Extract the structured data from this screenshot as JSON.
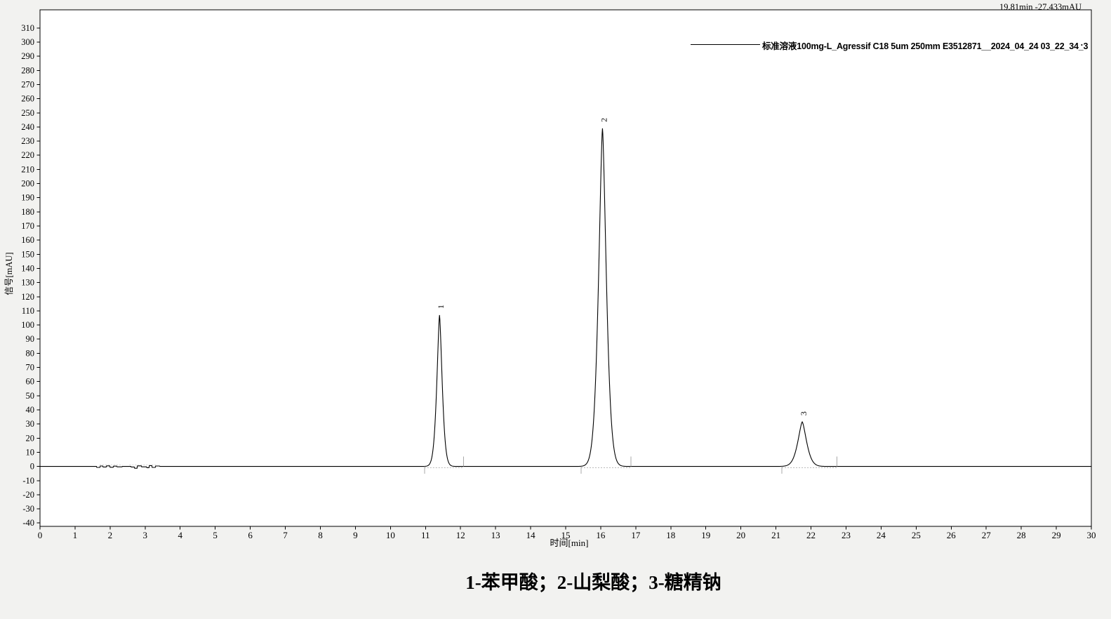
{
  "header": {
    "cursor_readout": "19.81min -27.433mAU"
  },
  "legend": {
    "label": "标准溶液100mg-L_Agressif C18 5um 250mm E3512871__2024_04_24 03_22_34_3",
    "trailing_dot": "."
  },
  "caption": {
    "text": "1-苯甲酸；2-山梨酸；3-糖精钠"
  },
  "colors": {
    "background": "#f2f2f0",
    "plot_background": "#ffffff",
    "trace": "#000000",
    "integration_marks": "#a8a8a8",
    "integration_baseline": "#b6b6b6",
    "noise_integration": "#d2d2d2"
  },
  "chart_data": {
    "type": "line",
    "title": "",
    "xlabel": "时间[min]",
    "ylabel": "信号[mAU]",
    "xlim": [
      0,
      30
    ],
    "ylim": [
      -40,
      310
    ],
    "grid": false,
    "legend_position": "top-right",
    "cursor_readout": "19.81min -27.433mAU",
    "xticks": [
      0,
      1,
      2,
      3,
      4,
      5,
      6,
      7,
      8,
      9,
      10,
      11,
      12,
      13,
      14,
      15,
      16,
      17,
      18,
      19,
      20,
      21,
      22,
      23,
      24,
      25,
      26,
      27,
      28,
      29,
      30
    ],
    "yticks": [
      -40,
      -30,
      -20,
      -10,
      0,
      10,
      20,
      30,
      40,
      50,
      60,
      70,
      80,
      90,
      100,
      110,
      120,
      130,
      140,
      150,
      160,
      170,
      180,
      190,
      200,
      210,
      220,
      230,
      240,
      250,
      260,
      270,
      280,
      290,
      300,
      310
    ],
    "series": [
      {
        "name": "标准溶液100mg-L_Agressif C18 5um 250mm E3512871__2024_04_24 03_22_34_3",
        "color": "#000000"
      }
    ],
    "peaks": [
      {
        "label": "1",
        "compound": "苯甲酸",
        "rt_min": 11.4,
        "height_mAU": 107,
        "width_factor": 0.11,
        "integration_window_min": [
          10.97,
          12.09
        ]
      },
      {
        "label": "2",
        "compound": "山梨酸",
        "rt_min": 16.05,
        "height_mAU": 239,
        "width_factor": 0.16,
        "integration_window_min": [
          15.44,
          16.86
        ]
      },
      {
        "label": "3",
        "compound": "糖精钠",
        "rt_min": 21.75,
        "height_mAU": 31.5,
        "width_factor": 0.18,
        "integration_window_min": [
          21.17,
          22.74
        ]
      }
    ],
    "baseline_noise_points": [
      [
        1.5,
        0
      ],
      [
        1.62,
        -0.7
      ],
      [
        1.72,
        0.3
      ],
      [
        1.8,
        -0.4
      ],
      [
        1.9,
        0.4
      ],
      [
        2.0,
        -0.6
      ],
      [
        2.1,
        0.2
      ],
      [
        2.2,
        -0.3
      ],
      [
        2.35,
        0.0
      ],
      [
        2.6,
        -0.4
      ],
      [
        2.7,
        -1.3
      ],
      [
        2.78,
        0.4
      ],
      [
        2.9,
        -0.3
      ],
      [
        3.05,
        -0.9
      ],
      [
        3.12,
        0.6
      ],
      [
        3.2,
        -0.7
      ],
      [
        3.3,
        0.3
      ],
      [
        3.42,
        0.0
      ]
    ],
    "noise_integration_segments_min": [
      [
        1.7,
        2.35
      ],
      [
        2.55,
        3.35
      ]
    ]
  }
}
